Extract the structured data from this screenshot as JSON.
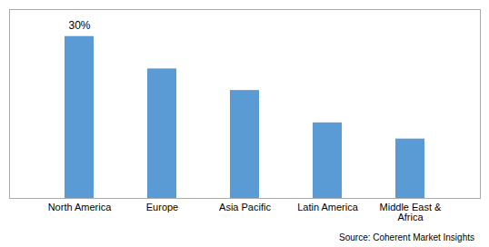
{
  "chart_data": {
    "type": "bar",
    "categories": [
      "North America",
      "Europe",
      "Asia Pacific",
      "Latin America",
      "Middle East &\nAfrica"
    ],
    "values": [
      30,
      24,
      20,
      14,
      11
    ],
    "color": "#5b9bd5",
    "ylim": [
      0,
      35
    ],
    "grid": false,
    "tick_labels": "x",
    "annotations": [
      {
        "text": "30%",
        "x": "North America",
        "y": 30
      }
    ],
    "caption": "Source: Coherent Market Insights"
  }
}
